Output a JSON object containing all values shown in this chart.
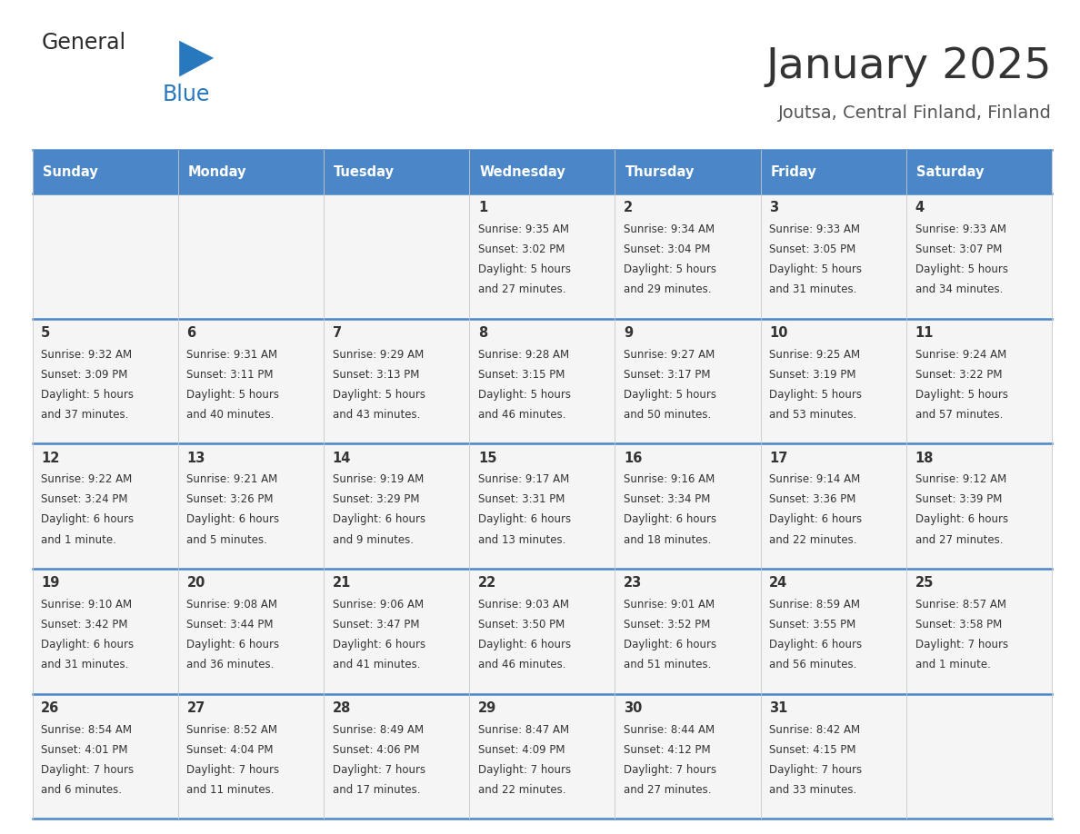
{
  "title": "January 2025",
  "subtitle": "Joutsa, Central Finland, Finland",
  "header_bg": "#4a86c8",
  "header_text": "#ffffff",
  "cell_bg": "#f5f5f5",
  "cell_border_blue": "#4a86c8",
  "cell_text": "#333333",
  "day_names": [
    "Sunday",
    "Monday",
    "Tuesday",
    "Wednesday",
    "Thursday",
    "Friday",
    "Saturday"
  ],
  "title_color": "#333333",
  "subtitle_color": "#555555",
  "logo_general_color": "#2a2a2a",
  "logo_blue_color": "#2878be",
  "days": [
    {
      "date": 1,
      "col": 3,
      "row": 0,
      "sunrise": "9:35 AM",
      "sunset": "3:02 PM",
      "daylight_h": "5 hours",
      "daylight_m": "and 27 minutes."
    },
    {
      "date": 2,
      "col": 4,
      "row": 0,
      "sunrise": "9:34 AM",
      "sunset": "3:04 PM",
      "daylight_h": "5 hours",
      "daylight_m": "and 29 minutes."
    },
    {
      "date": 3,
      "col": 5,
      "row": 0,
      "sunrise": "9:33 AM",
      "sunset": "3:05 PM",
      "daylight_h": "5 hours",
      "daylight_m": "and 31 minutes."
    },
    {
      "date": 4,
      "col": 6,
      "row": 0,
      "sunrise": "9:33 AM",
      "sunset": "3:07 PM",
      "daylight_h": "5 hours",
      "daylight_m": "and 34 minutes."
    },
    {
      "date": 5,
      "col": 0,
      "row": 1,
      "sunrise": "9:32 AM",
      "sunset": "3:09 PM",
      "daylight_h": "5 hours",
      "daylight_m": "and 37 minutes."
    },
    {
      "date": 6,
      "col": 1,
      "row": 1,
      "sunrise": "9:31 AM",
      "sunset": "3:11 PM",
      "daylight_h": "5 hours",
      "daylight_m": "and 40 minutes."
    },
    {
      "date": 7,
      "col": 2,
      "row": 1,
      "sunrise": "9:29 AM",
      "sunset": "3:13 PM",
      "daylight_h": "5 hours",
      "daylight_m": "and 43 minutes."
    },
    {
      "date": 8,
      "col": 3,
      "row": 1,
      "sunrise": "9:28 AM",
      "sunset": "3:15 PM",
      "daylight_h": "5 hours",
      "daylight_m": "and 46 minutes."
    },
    {
      "date": 9,
      "col": 4,
      "row": 1,
      "sunrise": "9:27 AM",
      "sunset": "3:17 PM",
      "daylight_h": "5 hours",
      "daylight_m": "and 50 minutes."
    },
    {
      "date": 10,
      "col": 5,
      "row": 1,
      "sunrise": "9:25 AM",
      "sunset": "3:19 PM",
      "daylight_h": "5 hours",
      "daylight_m": "and 53 minutes."
    },
    {
      "date": 11,
      "col": 6,
      "row": 1,
      "sunrise": "9:24 AM",
      "sunset": "3:22 PM",
      "daylight_h": "5 hours",
      "daylight_m": "and 57 minutes."
    },
    {
      "date": 12,
      "col": 0,
      "row": 2,
      "sunrise": "9:22 AM",
      "sunset": "3:24 PM",
      "daylight_h": "6 hours",
      "daylight_m": "and 1 minute."
    },
    {
      "date": 13,
      "col": 1,
      "row": 2,
      "sunrise": "9:21 AM",
      "sunset": "3:26 PM",
      "daylight_h": "6 hours",
      "daylight_m": "and 5 minutes."
    },
    {
      "date": 14,
      "col": 2,
      "row": 2,
      "sunrise": "9:19 AM",
      "sunset": "3:29 PM",
      "daylight_h": "6 hours",
      "daylight_m": "and 9 minutes."
    },
    {
      "date": 15,
      "col": 3,
      "row": 2,
      "sunrise": "9:17 AM",
      "sunset": "3:31 PM",
      "daylight_h": "6 hours",
      "daylight_m": "and 13 minutes."
    },
    {
      "date": 16,
      "col": 4,
      "row": 2,
      "sunrise": "9:16 AM",
      "sunset": "3:34 PM",
      "daylight_h": "6 hours",
      "daylight_m": "and 18 minutes."
    },
    {
      "date": 17,
      "col": 5,
      "row": 2,
      "sunrise": "9:14 AM",
      "sunset": "3:36 PM",
      "daylight_h": "6 hours",
      "daylight_m": "and 22 minutes."
    },
    {
      "date": 18,
      "col": 6,
      "row": 2,
      "sunrise": "9:12 AM",
      "sunset": "3:39 PM",
      "daylight_h": "6 hours",
      "daylight_m": "and 27 minutes."
    },
    {
      "date": 19,
      "col": 0,
      "row": 3,
      "sunrise": "9:10 AM",
      "sunset": "3:42 PM",
      "daylight_h": "6 hours",
      "daylight_m": "and 31 minutes."
    },
    {
      "date": 20,
      "col": 1,
      "row": 3,
      "sunrise": "9:08 AM",
      "sunset": "3:44 PM",
      "daylight_h": "6 hours",
      "daylight_m": "and 36 minutes."
    },
    {
      "date": 21,
      "col": 2,
      "row": 3,
      "sunrise": "9:06 AM",
      "sunset": "3:47 PM",
      "daylight_h": "6 hours",
      "daylight_m": "and 41 minutes."
    },
    {
      "date": 22,
      "col": 3,
      "row": 3,
      "sunrise": "9:03 AM",
      "sunset": "3:50 PM",
      "daylight_h": "6 hours",
      "daylight_m": "and 46 minutes."
    },
    {
      "date": 23,
      "col": 4,
      "row": 3,
      "sunrise": "9:01 AM",
      "sunset": "3:52 PM",
      "daylight_h": "6 hours",
      "daylight_m": "and 51 minutes."
    },
    {
      "date": 24,
      "col": 5,
      "row": 3,
      "sunrise": "8:59 AM",
      "sunset": "3:55 PM",
      "daylight_h": "6 hours",
      "daylight_m": "and 56 minutes."
    },
    {
      "date": 25,
      "col": 6,
      "row": 3,
      "sunrise": "8:57 AM",
      "sunset": "3:58 PM",
      "daylight_h": "7 hours",
      "daylight_m": "and 1 minute."
    },
    {
      "date": 26,
      "col": 0,
      "row": 4,
      "sunrise": "8:54 AM",
      "sunset": "4:01 PM",
      "daylight_h": "7 hours",
      "daylight_m": "and 6 minutes."
    },
    {
      "date": 27,
      "col": 1,
      "row": 4,
      "sunrise": "8:52 AM",
      "sunset": "4:04 PM",
      "daylight_h": "7 hours",
      "daylight_m": "and 11 minutes."
    },
    {
      "date": 28,
      "col": 2,
      "row": 4,
      "sunrise": "8:49 AM",
      "sunset": "4:06 PM",
      "daylight_h": "7 hours",
      "daylight_m": "and 17 minutes."
    },
    {
      "date": 29,
      "col": 3,
      "row": 4,
      "sunrise": "8:47 AM",
      "sunset": "4:09 PM",
      "daylight_h": "7 hours",
      "daylight_m": "and 22 minutes."
    },
    {
      "date": 30,
      "col": 4,
      "row": 4,
      "sunrise": "8:44 AM",
      "sunset": "4:12 PM",
      "daylight_h": "7 hours",
      "daylight_m": "and 27 minutes."
    },
    {
      "date": 31,
      "col": 5,
      "row": 4,
      "sunrise": "8:42 AM",
      "sunset": "4:15 PM",
      "daylight_h": "7 hours",
      "daylight_m": "and 33 minutes."
    }
  ]
}
